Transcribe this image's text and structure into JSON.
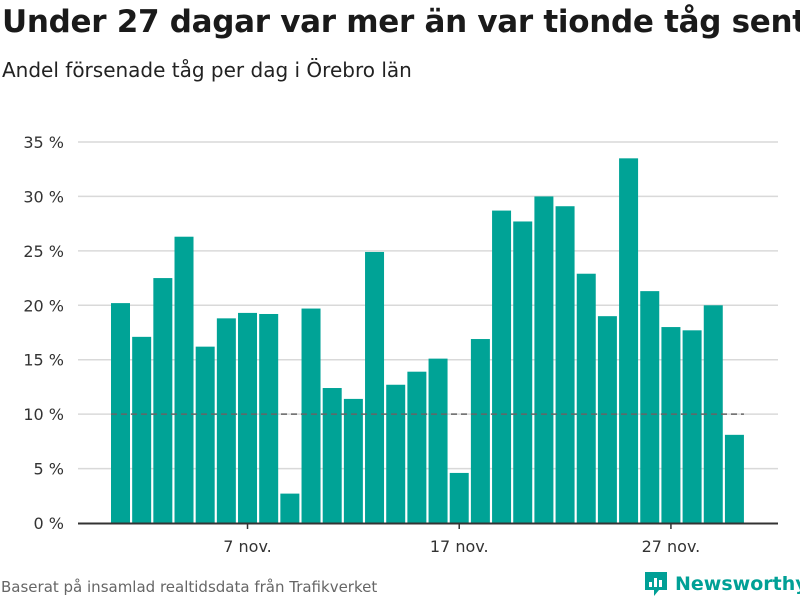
{
  "header": {
    "title": "Under 27 dagar var mer än var tionde tåg sent",
    "subtitle": "Andel försenade tåg per dag i Örebro län"
  },
  "footer": {
    "source": "Baserat på insamlad realtidsdata från Trafikverket",
    "brand": "Newsworthy"
  },
  "colors": {
    "bar": "#00a396",
    "grid": "#d9d9d9",
    "axis": "#333333",
    "reference_line": "#666666",
    "brand": "#00a096"
  },
  "icons": [
    "newsworthy-logo-icon"
  ],
  "chart_data": {
    "type": "bar",
    "title": "Under 27 dagar var mer än var tionde tåg sent",
    "subtitle": "Andel försenade tåg per dag i Örebro län",
    "xlabel": "",
    "ylabel": "",
    "categories": [
      "1 nov.",
      "2 nov.",
      "3 nov.",
      "4 nov.",
      "5 nov.",
      "6 nov.",
      "7 nov.",
      "8 nov.",
      "9 nov.",
      "10 nov.",
      "11 nov.",
      "12 nov.",
      "13 nov.",
      "14 nov.",
      "15 nov.",
      "16 nov.",
      "17 nov.",
      "18 nov.",
      "19 nov.",
      "20 nov.",
      "21 nov.",
      "22 nov.",
      "23 nov.",
      "24 nov.",
      "25 nov.",
      "26 nov.",
      "27 nov.",
      "28 nov.",
      "29 nov.",
      "30 nov."
    ],
    "values": [
      20.2,
      17.1,
      22.5,
      26.3,
      16.2,
      18.8,
      19.3,
      19.2,
      2.7,
      19.7,
      12.4,
      11.4,
      24.9,
      12.7,
      13.9,
      15.1,
      4.6,
      16.9,
      28.7,
      27.7,
      30.0,
      29.1,
      22.9,
      19.0,
      33.5,
      21.3,
      18.0,
      17.7,
      20.0,
      8.1
    ],
    "ylim": [
      0,
      35
    ],
    "yticks": [
      0,
      5,
      10,
      15,
      20,
      25,
      30,
      35
    ],
    "ytick_labels": [
      "0 %",
      "5 %",
      "10 %",
      "15 %",
      "20 %",
      "25 %",
      "30 %",
      "35 %"
    ],
    "xticks": [
      {
        "index": 6,
        "label": "7 nov."
      },
      {
        "index": 16,
        "label": "17 nov."
      },
      {
        "index": 26,
        "label": "27 nov."
      }
    ],
    "reference_line": {
      "value": 10,
      "style": "dashed"
    },
    "grid": true,
    "legend": "none"
  }
}
